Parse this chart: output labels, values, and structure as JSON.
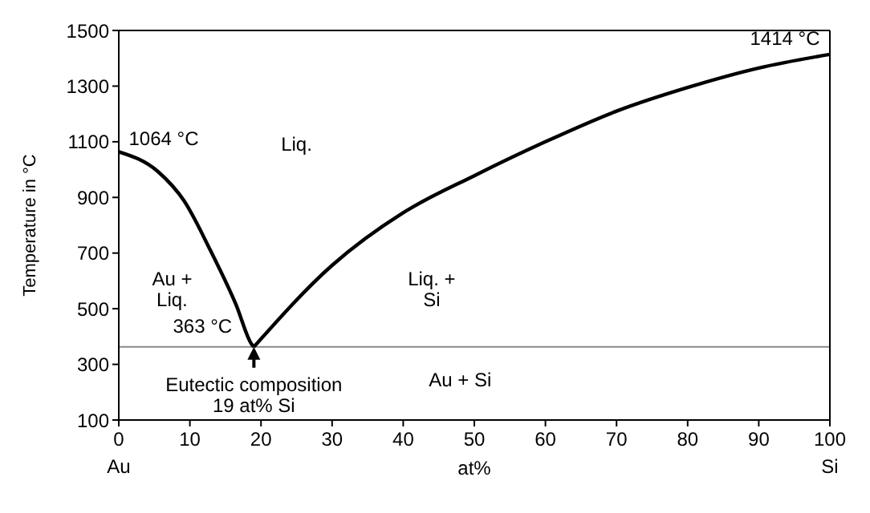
{
  "chart_data": {
    "type": "line",
    "ylabel": "Temperature in °C",
    "xlabel": "at%",
    "xlim": [
      0,
      100
    ],
    "xticks": [
      {
        "value": 0,
        "label": "0\nAu"
      },
      10,
      20,
      30,
      40,
      50,
      60,
      70,
      80,
      90,
      {
        "value": 100,
        "label": "100\nSi"
      }
    ],
    "ylim": [
      100,
      1500
    ],
    "yticks": [
      100,
      300,
      500,
      700,
      900,
      1100,
      1300,
      1500
    ],
    "grid": false,
    "marker": "none",
    "line_style": "solid",
    "series": [
      {
        "color": "#000000",
        "x": [
          0,
          5.5,
          9.2,
          12.9,
          16.5,
          18.7,
          19
        ],
        "values": [
          1064,
          993,
          887,
          709,
          514,
          372,
          363
        ]
      },
      {
        "color": "#000000",
        "x": [
          19,
          30,
          40,
          50,
          60,
          70,
          80,
          90,
          100
        ],
        "values": [
          363,
          656,
          845,
          978,
          1100,
          1210,
          1295,
          1365,
          1414
        ]
      }
    ],
    "ref_lines": [
      {
        "axis": "y",
        "value": 363,
        "color": "#888888"
      }
    ],
    "annotations": [
      {
        "text": "1064 °C",
        "x": 0,
        "y": 1064
      },
      {
        "text": "1414 °C",
        "x": 100,
        "y": 1414
      },
      {
        "text": "363 °C",
        "x": 19,
        "y": 363
      },
      {
        "text": "Eutectic composition\n19 at% Si",
        "x": 19,
        "y": 363
      },
      "Liq.",
      "Au +\nLiq.",
      "Liq. +\nSi",
      "Au + Si"
    ]
  }
}
